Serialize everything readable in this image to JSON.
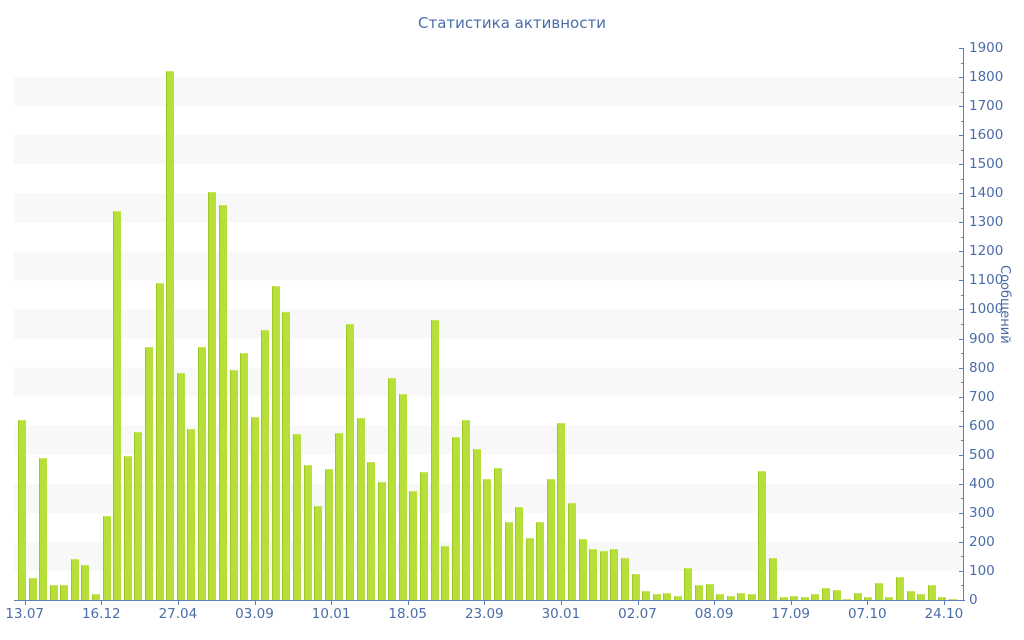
{
  "title": "Статистика активности",
  "y_axis": {
    "label": "Сообщений",
    "min": 0,
    "max": 1900,
    "major_step": 100,
    "minor_step": 50,
    "tick_labels": [
      "0",
      "100",
      "200",
      "300",
      "400",
      "500",
      "600",
      "700",
      "800",
      "900",
      "1000",
      "1100",
      "1200",
      "1300",
      "1400",
      "1500",
      "1600",
      "1700",
      "1800",
      "1900"
    ]
  },
  "x_axis": {
    "labels": [
      "13.07",
      "16.12",
      "27.04",
      "03.09",
      "10.01",
      "18.05",
      "23.09",
      "30.01",
      "02.07",
      "08.09",
      "17.09",
      "07.10",
      "24.10"
    ]
  },
  "colors": {
    "bar_fill": "#b7df3a",
    "bar_edge": "#9ec724",
    "axis_line": "#5b7ec0",
    "text": "#4a6da8",
    "stripe": "#f8f8f8",
    "background": "#ffffff"
  },
  "chart_data": {
    "type": "bar",
    "title": "Статистика активности",
    "ylabel": "Сообщений",
    "ylim": [
      0,
      1900
    ],
    "grid": "alternating horizontal stripes every 100",
    "legend": "none",
    "x_tick_labels": [
      "13.07",
      "16.12",
      "27.04",
      "03.09",
      "10.01",
      "18.05",
      "23.09",
      "30.01",
      "02.07",
      "08.09",
      "17.09",
      "07.10",
      "24.10"
    ],
    "values": [
      620,
      75,
      490,
      50,
      50,
      140,
      120,
      20,
      290,
      1340,
      495,
      580,
      870,
      1090,
      1820,
      780,
      590,
      870,
      1405,
      1360,
      790,
      850,
      630,
      930,
      1080,
      990,
      570,
      465,
      325,
      450,
      575,
      950,
      625,
      475,
      405,
      765,
      710,
      375,
      440,
      965,
      185,
      560,
      620,
      520,
      415,
      455,
      270,
      320,
      215,
      270,
      415,
      610,
      335,
      210,
      175,
      170,
      175,
      145,
      90,
      30,
      20,
      25,
      15,
      110,
      50,
      55,
      20,
      15,
      25,
      20,
      445,
      145,
      10,
      15,
      10,
      20,
      40,
      35,
      5,
      25,
      10,
      60,
      10,
      80,
      30,
      20,
      50,
      10,
      5
    ]
  }
}
